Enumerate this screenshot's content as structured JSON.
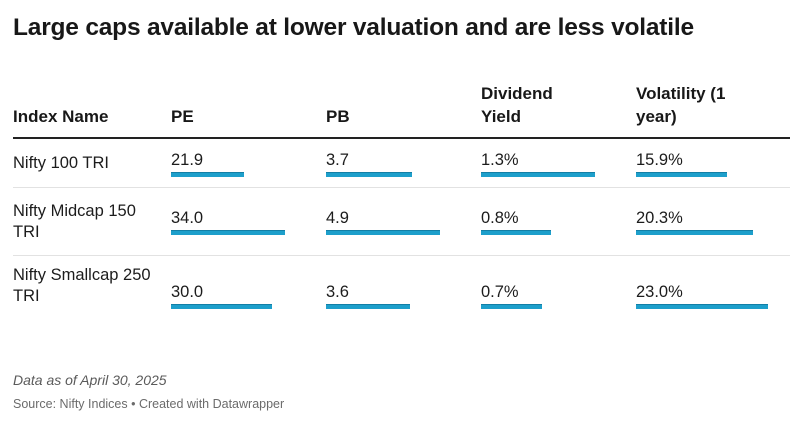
{
  "title": "Large caps available at lower valuation and are less volatile",
  "chart_data": {
    "type": "table",
    "columns": [
      "Index Name",
      "PE",
      "PB",
      "Dividend Yield",
      "Volatility (1 year)"
    ],
    "rows": [
      {
        "name": "Nifty 100 TRI",
        "values": [
          "21.9",
          "3.7",
          "1.3%",
          "15.9%"
        ],
        "numbers": [
          21.9,
          3.7,
          1.3,
          15.9
        ]
      },
      {
        "name": "Nifty Midcap 150 TRI",
        "values": [
          "34.0",
          "4.9",
          "0.8%",
          "20.3%"
        ],
        "numbers": [
          34.0,
          4.9,
          0.8,
          20.3
        ]
      },
      {
        "name": "Nifty Smallcap 250 TRI",
        "values": [
          "30.0",
          "3.6",
          "0.7%",
          "23.0%"
        ],
        "numbers": [
          30.0,
          3.6,
          0.7,
          23.0
        ]
      }
    ],
    "bar_color": "#1d9fcb"
  },
  "note": "Data as of April 30, 2025",
  "source": "Source: Nifty Indices • Created with Datawrapper"
}
